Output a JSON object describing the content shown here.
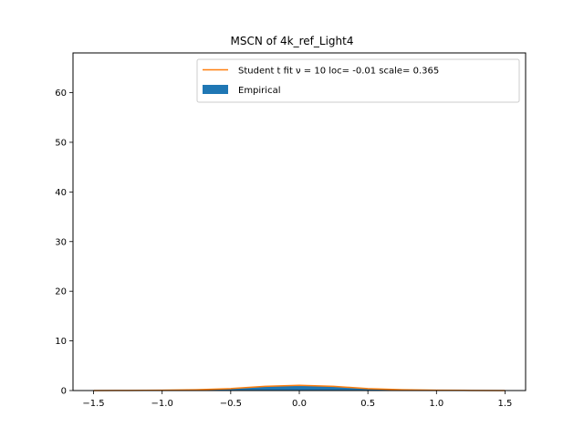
{
  "chart_data": {
    "type": "area",
    "title": "MSCN of 4k_ref_Light4",
    "xlabel": "",
    "ylabel": "",
    "xlim": [
      -1.65,
      1.65
    ],
    "ylim": [
      0,
      68
    ],
    "xticks": [
      -1.5,
      -1.0,
      -0.5,
      0.0,
      0.5,
      1.0,
      1.5
    ],
    "xtick_labels": [
      "−1.5",
      "−1.0",
      "−0.5",
      "0.0",
      "0.5",
      "1.0",
      "1.5"
    ],
    "yticks": [
      0,
      10,
      20,
      30,
      40,
      50,
      60
    ],
    "ytick_labels": [
      "0",
      "10",
      "20",
      "30",
      "40",
      "50",
      "60"
    ],
    "grid": false,
    "legend_position": "top-right",
    "series": [
      {
        "name": "Student t fit ν = 10 loc= -0.01 scale= 0.365",
        "kind": "line",
        "color": "#ff7f0e",
        "x": [
          -1.5,
          -1.25,
          -1.0,
          -0.75,
          -0.5,
          -0.25,
          0.0,
          0.25,
          0.5,
          0.75,
          1.0,
          1.25,
          1.5
        ],
        "y": [
          0.01,
          0.03,
          0.06,
          0.16,
          0.4,
          0.85,
          1.05,
          0.85,
          0.4,
          0.16,
          0.06,
          0.03,
          0.01
        ]
      },
      {
        "name": "Empirical",
        "kind": "area",
        "color": "#1f77b4",
        "x": [
          -1.5,
          -1.25,
          -1.0,
          -0.75,
          -0.5,
          -0.25,
          0.0,
          0.25,
          0.5,
          0.75,
          1.0,
          1.25,
          1.5
        ],
        "y": [
          0.0,
          0.02,
          0.05,
          0.15,
          0.38,
          0.8,
          1.0,
          0.8,
          0.38,
          0.15,
          0.05,
          0.02,
          0.0
        ]
      }
    ]
  }
}
